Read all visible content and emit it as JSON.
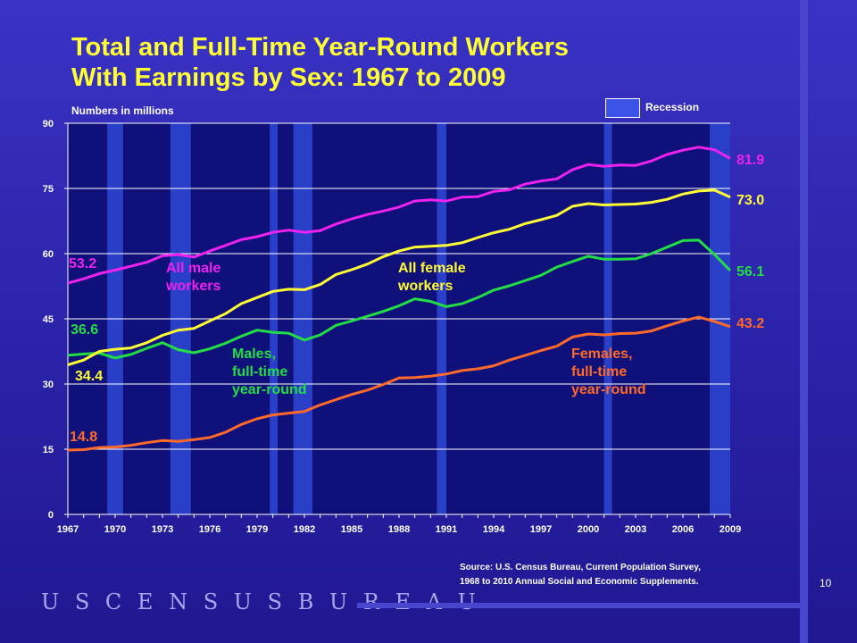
{
  "title": {
    "line1": "Total and Full-Time Year-Round Workers",
    "line2": "With Earnings by Sex: 1967 to 2009"
  },
  "units_label": "Numbers in millions",
  "legend": {
    "recession_label": "Recession"
  },
  "source": {
    "line1": "Source:  U.S. Census Bureau, Current Population Survey,",
    "line2": "1968 to 2010 Annual Social and Economic Supplements."
  },
  "page_number": "10",
  "footer_logo": "U S C E N S U S B U R E A U",
  "colors": {
    "plot_background": "#10107a",
    "recession_band": "#2a3fc8",
    "all_male": "#ee22ee",
    "all_female": "#ffff33",
    "male_ft": "#22dd44",
    "female_ft": "#ff6a2a",
    "title": "#ffff33"
  },
  "series_labels": {
    "all_male": "All male\nworkers",
    "all_female": "All female\nworkers",
    "male_ft": "Males,\nfull-time\nyear-round",
    "female_ft": "Females,\nfull-time\nyear-round"
  },
  "start_labels": {
    "all_male": "53.2",
    "male_ft": "36.6",
    "all_female": "34.4",
    "female_ft": "14.8"
  },
  "end_labels": {
    "all_male": "81.9",
    "all_female": "73.0",
    "male_ft": "56.1",
    "female_ft": "43.2"
  },
  "chart_data": {
    "type": "line",
    "title": "Total and Full-Time Year-Round Workers With Earnings by Sex: 1967 to 2009",
    "ylabel": "Numbers in millions",
    "xlabel": "",
    "xlim": [
      1967,
      2009
    ],
    "ylim": [
      0,
      90
    ],
    "yticks": [
      0,
      15,
      30,
      45,
      60,
      75,
      90
    ],
    "xticks": [
      1967,
      1970,
      1973,
      1976,
      1979,
      1982,
      1985,
      1988,
      1991,
      1994,
      1997,
      2000,
      2003,
      2006,
      2009
    ],
    "grid": true,
    "recessions": [
      [
        1969.5,
        1970.5
      ],
      [
        1973.5,
        1974.8
      ],
      [
        1979.8,
        1980.3
      ],
      [
        1981.3,
        1982.5
      ],
      [
        1990.4,
        1991.0
      ],
      [
        2001.0,
        2001.5
      ],
      [
        2007.7,
        2009.0
      ]
    ],
    "x": [
      1967,
      1968,
      1969,
      1970,
      1971,
      1972,
      1973,
      1974,
      1975,
      1976,
      1977,
      1978,
      1979,
      1980,
      1981,
      1982,
      1983,
      1984,
      1985,
      1986,
      1987,
      1988,
      1989,
      1990,
      1991,
      1992,
      1993,
      1994,
      1995,
      1996,
      1997,
      1998,
      1999,
      2000,
      2001,
      2002,
      2003,
      2004,
      2005,
      2006,
      2007,
      2008,
      2009
    ],
    "series": [
      {
        "name": "All male workers",
        "key": "all_male",
        "values": [
          53.2,
          54.2,
          55.4,
          56.2,
          57.1,
          58.0,
          59.5,
          59.8,
          59.2,
          60.6,
          61.9,
          63.2,
          63.9,
          64.9,
          65.4,
          64.9,
          65.3,
          66.8,
          68.0,
          69.0,
          69.8,
          70.7,
          72.1,
          72.4,
          72.1,
          73.0,
          73.1,
          74.3,
          74.7,
          76.0,
          76.7,
          77.2,
          79.3,
          80.5,
          80.1,
          80.4,
          80.3,
          81.3,
          82.8,
          83.8,
          84.5,
          83.9,
          81.9
        ]
      },
      {
        "name": "All female workers",
        "key": "all_female",
        "values": [
          34.4,
          35.5,
          37.5,
          38.0,
          38.3,
          39.5,
          41.2,
          42.4,
          42.8,
          44.5,
          46.2,
          48.5,
          49.9,
          51.3,
          51.8,
          51.7,
          52.9,
          55.2,
          56.3,
          57.6,
          59.3,
          60.6,
          61.5,
          61.7,
          61.9,
          62.5,
          63.7,
          64.8,
          65.6,
          66.9,
          67.8,
          68.8,
          70.9,
          71.5,
          71.2,
          71.3,
          71.4,
          71.8,
          72.5,
          73.7,
          74.4,
          74.6,
          73.0
        ]
      },
      {
        "name": "Males, full-time year-round",
        "key": "male_ft",
        "values": [
          36.6,
          36.9,
          37.1,
          36.0,
          36.8,
          38.2,
          39.5,
          37.9,
          37.2,
          38.1,
          39.4,
          41.0,
          42.4,
          41.9,
          41.7,
          40.1,
          41.3,
          43.5,
          44.5,
          45.6,
          46.7,
          48.0,
          49.6,
          49.0,
          47.8,
          48.5,
          49.9,
          51.6,
          52.6,
          53.8,
          55.0,
          56.9,
          58.2,
          59.4,
          58.7,
          58.7,
          58.8,
          60.0,
          61.5,
          63.0,
          63.1,
          59.8,
          56.1
        ]
      },
      {
        "name": "Females, full-time year-round",
        "key": "female_ft",
        "values": [
          14.8,
          14.9,
          15.4,
          15.5,
          15.9,
          16.5,
          17.0,
          16.8,
          17.2,
          17.7,
          18.9,
          20.7,
          22.0,
          22.9,
          23.3,
          23.7,
          25.2,
          26.4,
          27.6,
          28.6,
          29.9,
          31.4,
          31.5,
          31.8,
          32.3,
          33.1,
          33.5,
          34.2,
          35.5,
          36.6,
          37.7,
          38.7,
          40.8,
          41.5,
          41.3,
          41.6,
          41.7,
          42.2,
          43.4,
          44.5,
          45.4,
          44.4,
          43.2
        ]
      }
    ]
  }
}
